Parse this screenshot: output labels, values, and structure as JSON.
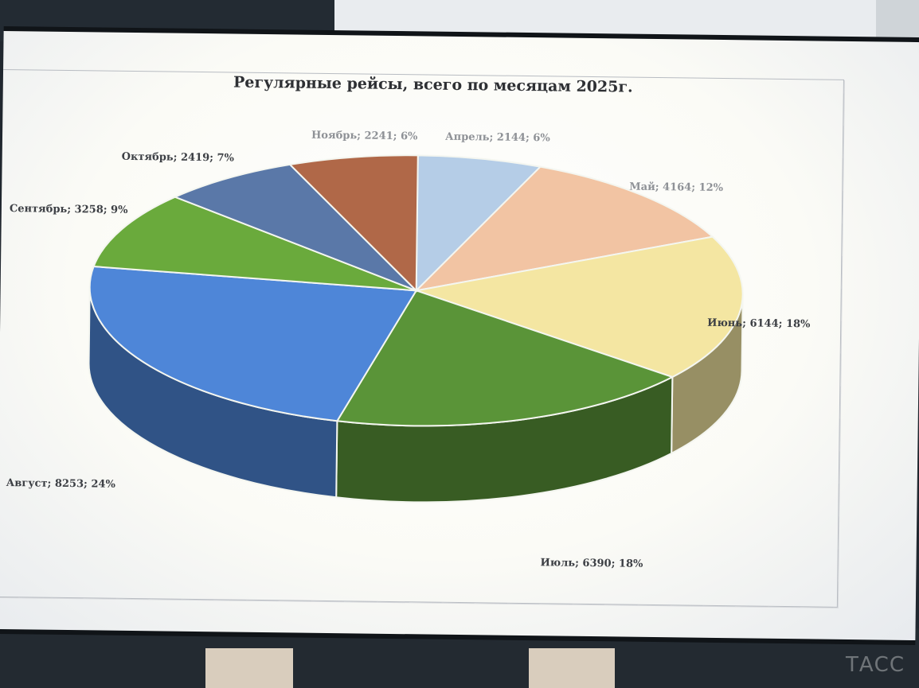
{
  "chart_data": {
    "type": "pie",
    "style": "3d",
    "title": "Регулярные рейсы, всего по месяцам 2025г.",
    "slices": [
      {
        "name": "Апрель",
        "value": 2144,
        "percent": 6,
        "label": "Апрель; 2144; 6%",
        "color": "#b5cde7"
      },
      {
        "name": "Май",
        "value": 4164,
        "percent": 12,
        "label": "Май; 4164; 12%",
        "color": "#f2c4a3"
      },
      {
        "name": "Июнь",
        "value": 6144,
        "percent": 18,
        "label": "Июнь; 6144; 18%",
        "color": "#f4e6a2"
      },
      {
        "name": "Июль",
        "value": 6390,
        "percent": 18,
        "label": "Июль; 6390; 18%",
        "color": "#5a9438"
      },
      {
        "name": "Август",
        "value": 8253,
        "percent": 24,
        "label": "Август; 8253; 24%",
        "color": "#4e86d8"
      },
      {
        "name": "Сентябрь",
        "value": 3258,
        "percent": 9,
        "label": "Сентябрь; 3258; 9%",
        "color": "#6aaa3c"
      },
      {
        "name": "Октябрь",
        "value": 2419,
        "percent": 7,
        "label": "Октябрь; 2419; 7%",
        "color": "#5a78a8"
      },
      {
        "name": "Ноябрь",
        "value": 2241,
        "percent": 6,
        "label": "Ноябрь; 2241; 6%",
        "color": "#b06848"
      }
    ],
    "legend": "none"
  },
  "watermark": "ТАСС"
}
